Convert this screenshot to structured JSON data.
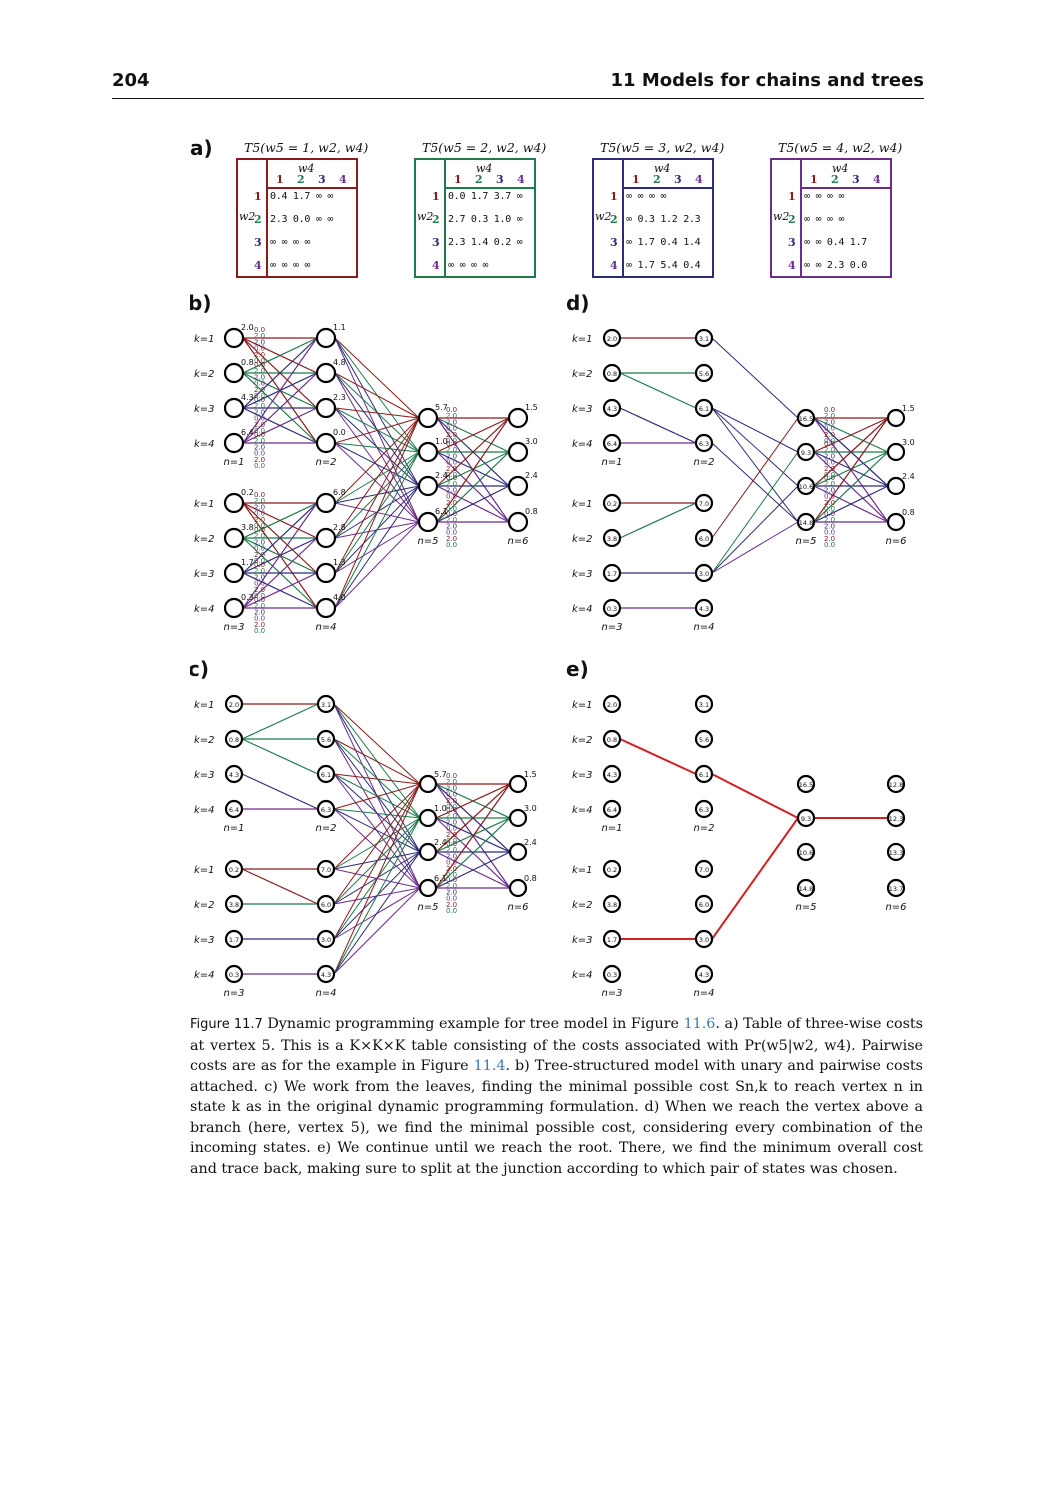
{
  "header": {
    "page_number": "204",
    "chapter_title": "11 Models for chains and trees"
  },
  "panels": {
    "a": "a)",
    "b": "b)",
    "c": "c)",
    "d": "d)",
    "e": "e)"
  },
  "tables": [
    {
      "title": "T5(w5 = 1, w2, w4)",
      "color": "#8b1a1a",
      "w2": "w2",
      "w4": "w4",
      "cols": [
        "1",
        "2",
        "3",
        "4"
      ],
      "rows": [
        "1",
        "2",
        "3",
        "4"
      ],
      "cells": [
        "0.4 1.7 ∞ ∞",
        "2.3 0.0 ∞ ∞",
        "∞ ∞ ∞ ∞",
        "∞ ∞ ∞ ∞"
      ]
    },
    {
      "title": "T5(w5 = 2, w2, w4)",
      "color": "#1e7b4a",
      "w2": "w2",
      "w4": "w4",
      "cols": [
        "1",
        "2",
        "3",
        "4"
      ],
      "rows": [
        "1",
        "2",
        "3",
        "4"
      ],
      "cells": [
        "0.0 1.7 3.7 ∞",
        "2.7 0.3 1.0 ∞",
        "2.3 1.4 0.2 ∞",
        "∞ ∞ ∞ ∞"
      ]
    },
    {
      "title": "T5(w5 = 3, w2, w4)",
      "color": "#2c2c7a",
      "w2": "w2",
      "w4": "w4",
      "cols": [
        "1",
        "2",
        "3",
        "4"
      ],
      "rows": [
        "1",
        "2",
        "3",
        "4"
      ],
      "cells": [
        "∞ ∞ ∞ ∞",
        "∞ 0.3 1.2 2.3",
        "∞ 1.7 0.4 1.4",
        "∞ 1.7 5.4 0.4"
      ]
    },
    {
      "title": "T5(w5 = 4, w2, w4)",
      "color": "#6b2c8a",
      "w2": "w2",
      "w4": "w4",
      "cols": [
        "1",
        "2",
        "3",
        "4"
      ],
      "rows": [
        "1",
        "2",
        "3",
        "4"
      ],
      "cells": [
        "∞ ∞ ∞ ∞",
        "∞ ∞ ∞ ∞",
        "∞ ∞ 0.4 1.7",
        "∞ ∞ 2.3 0.0"
      ]
    }
  ],
  "labels": {
    "k1": "k=1",
    "k2": "k=2",
    "k3": "k=3",
    "k4": "k=4",
    "n1": "n=1",
    "n2": "n=2",
    "n3": "n=3",
    "n4": "n=4",
    "n5": "n=5",
    "n6": "n=6"
  },
  "unary": {
    "n1": [
      "2.0",
      "0.8",
      "4.3",
      "6.4"
    ],
    "n2": [
      "1.1",
      "4.8",
      "2.3",
      "0.0"
    ],
    "n3": [
      "0.2",
      "3.8",
      "1.7",
      "0.3"
    ],
    "n4": [
      "6.8",
      "2.8",
      "1.3",
      "4.0"
    ],
    "n5": [
      "5.7",
      "1.0",
      "2.4",
      "6.1"
    ],
    "n6": [
      "1.5",
      "3.0",
      "2.4",
      "0.8"
    ]
  },
  "cumulative": {
    "n1": [
      "2.0",
      "0.8",
      "4.3",
      "6.4"
    ],
    "n2": [
      "3.1",
      "5.6",
      "6.1",
      "6.3"
    ],
    "n3": [
      "0.2",
      "3.8",
      "1.7",
      "0.3"
    ],
    "n4": [
      "7.0",
      "6.0",
      "3.0",
      "4.3"
    ],
    "n5": [
      "16.5",
      "9.3",
      "10.6",
      "14.8"
    ],
    "n6": [
      "12.8",
      "12.3",
      "13.3",
      "13.7"
    ]
  },
  "pairwise_labels": [
    "0.0",
    "2.0",
    "2.0",
    "0.0",
    "2.0",
    "0.0"
  ],
  "colors": {
    "state1": "#8b1a1a",
    "state2": "#1e7b4a",
    "state3": "#2c2c7a",
    "state4": "#6b2c8a",
    "path": "#d42020"
  },
  "caption": {
    "figure_label": "Figure 11.7",
    "t1": " Dynamic programming example for tree model in Figure ",
    "ref1": "11.6",
    "t2": ". a) Table of three-wise costs at vertex 5. This is a K×K×K table consisting of the costs associated with Pr(w5|w2, w4). Pairwise costs are as for the example in Figure ",
    "ref2": "11.4",
    "t3": ". b) Tree-structured model with unary and pairwise costs attached. c) We work from the leaves, finding the minimal possible cost Sn,k to reach vertex n in state k as in the original dynamic programming formulation. d) When we reach the vertex above a branch (here, vertex 5), we find the minimal possible cost, considering every combination of the incoming states. e) We continue until we reach the root. There, we find the minimum overall cost and trace back, making sure to split at the junction according to which pair of states was chosen."
  }
}
